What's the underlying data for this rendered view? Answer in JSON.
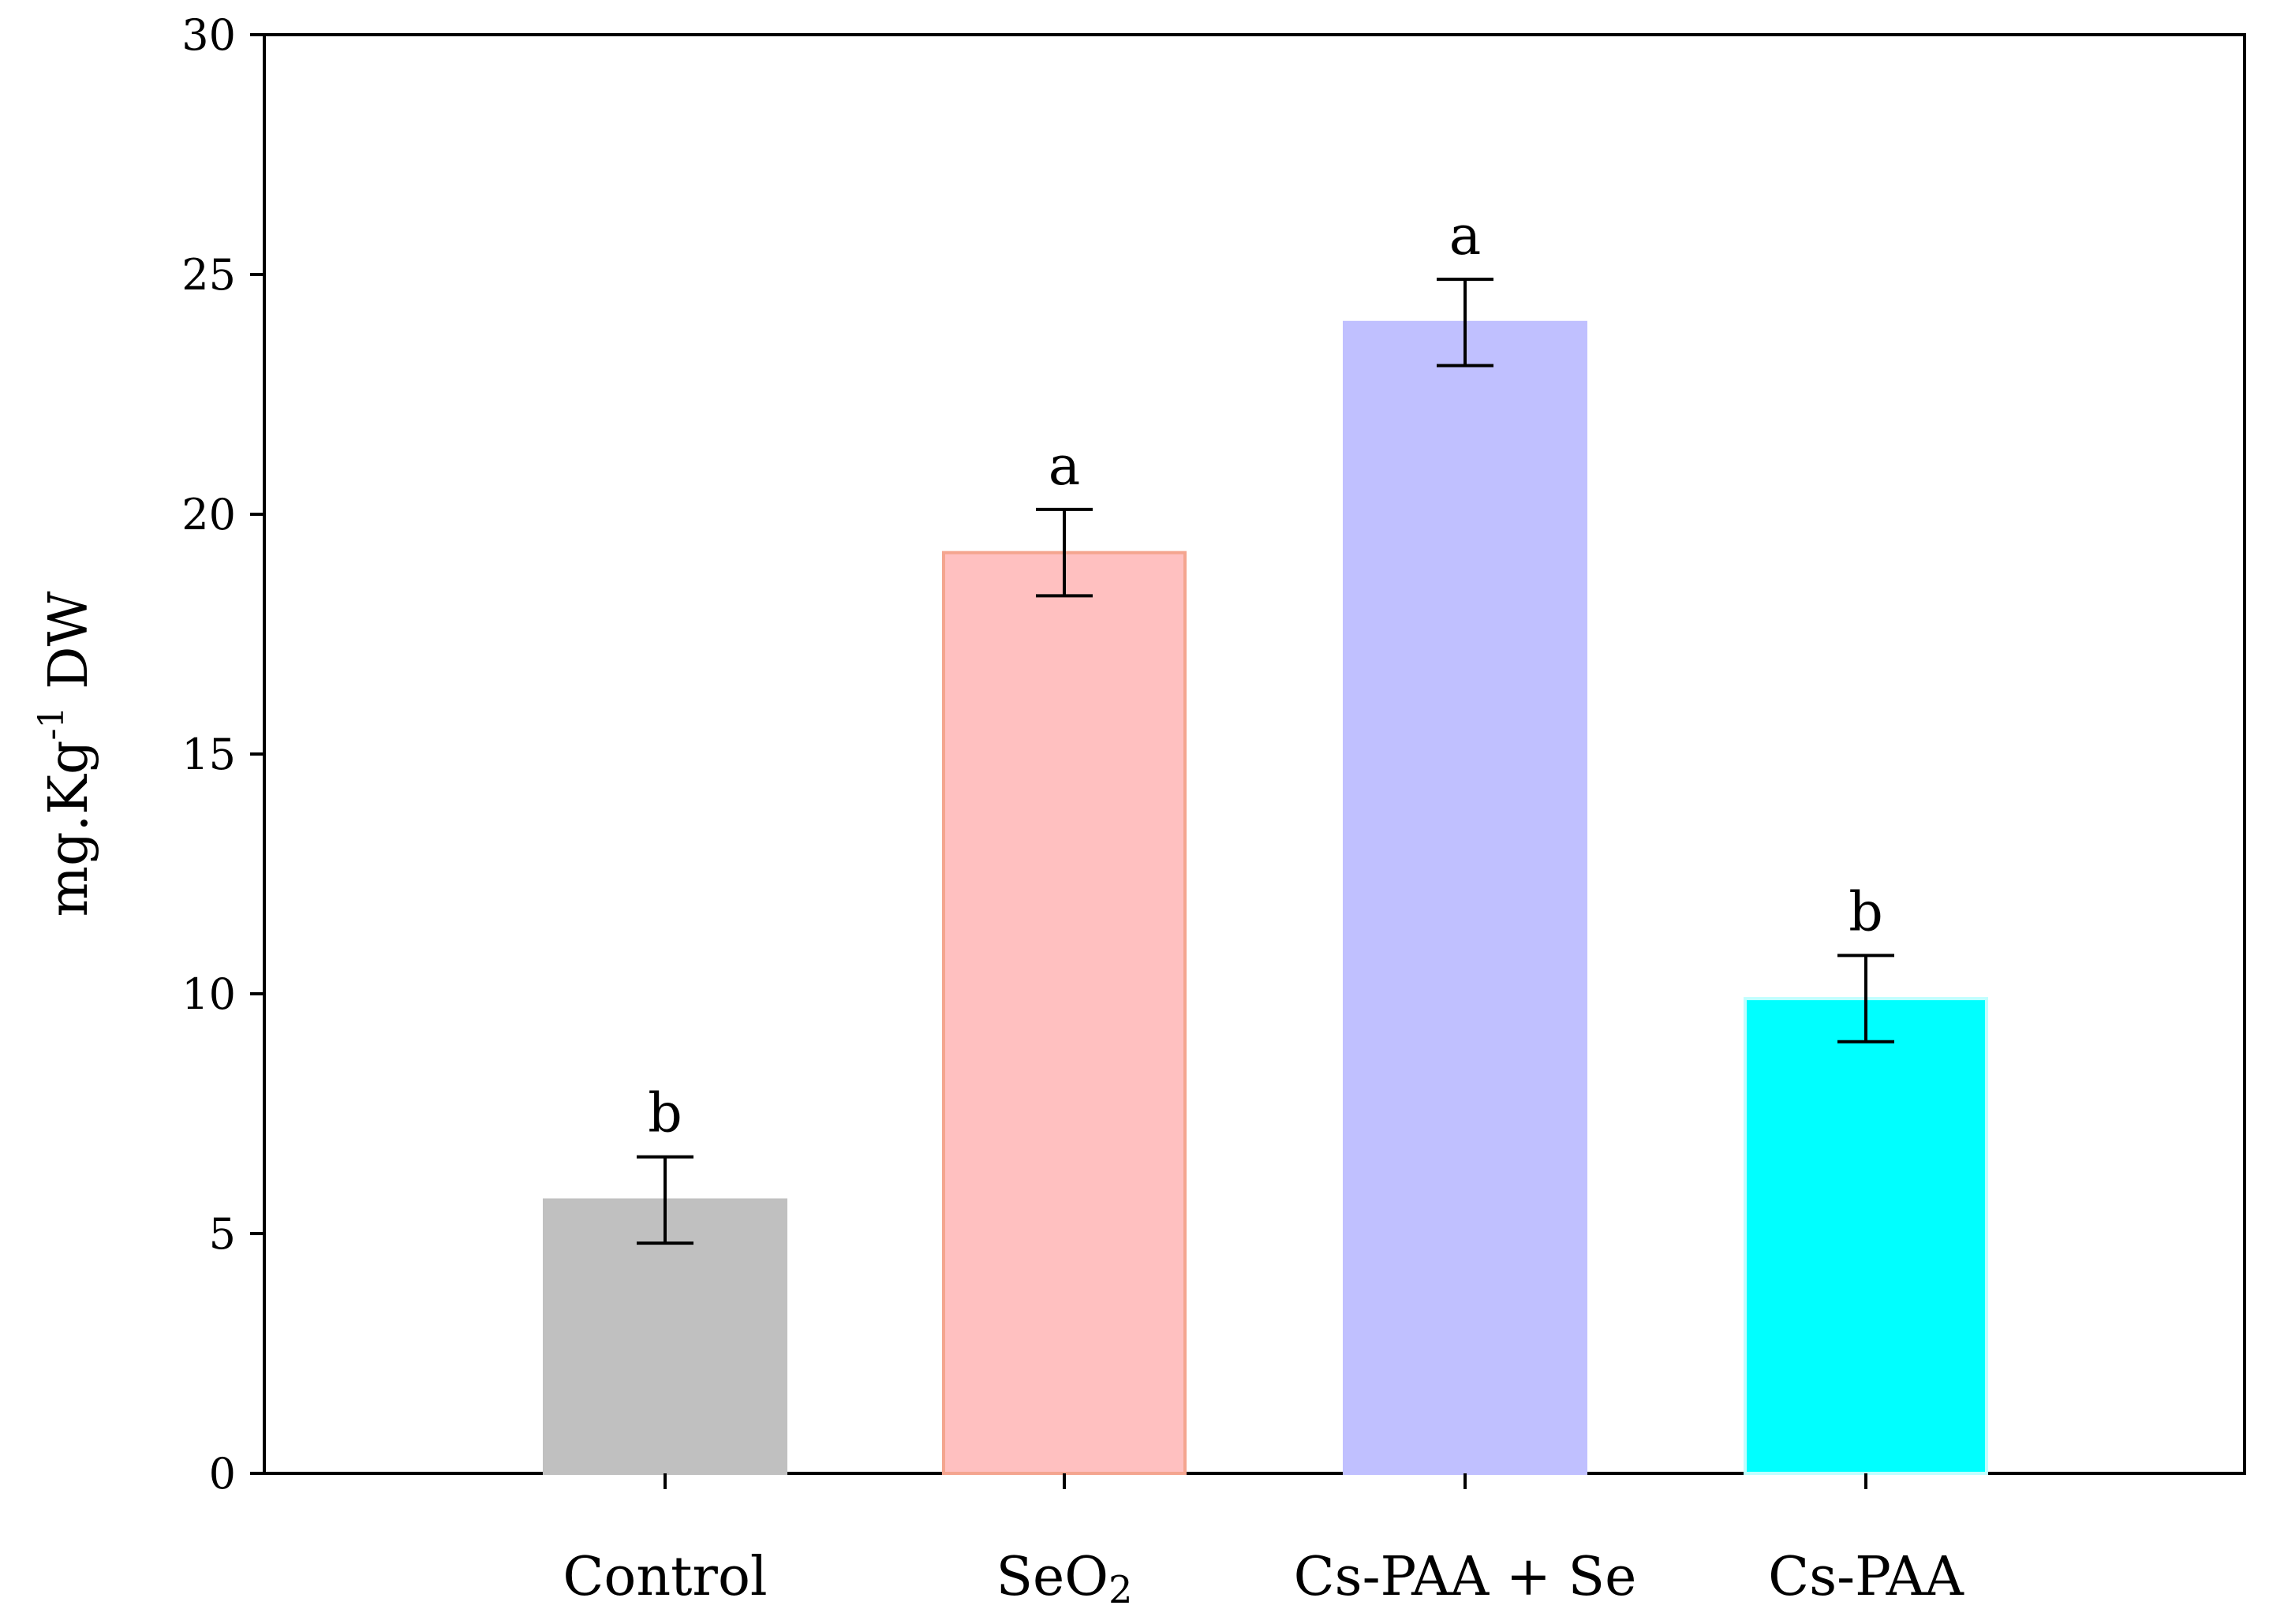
{
  "chart_data": {
    "type": "bar",
    "title": "",
    "xlabel": "",
    "ylabel": {
      "base": "mg.Kg",
      "sup": "-1",
      "suffix": " DW"
    },
    "ylim": [
      0,
      30
    ],
    "yticks": [
      0,
      5,
      10,
      15,
      20,
      25,
      30
    ],
    "grid": false,
    "categories": [
      {
        "name": "Control",
        "sub": ""
      },
      {
        "name": "SeO",
        "sub": "2"
      },
      {
        "name": "Cs-PAA + Se",
        "sub": ""
      },
      {
        "name": "Cs-PAA",
        "sub": ""
      }
    ],
    "values": [
      5.7,
      19.2,
      24.0,
      9.9
    ],
    "errors": [
      0.9,
      0.9,
      0.9,
      0.9
    ],
    "significance": [
      "b",
      "a",
      "a",
      "b"
    ],
    "fill_colors": [
      "#c0c0c0",
      "#ffc0c0",
      "#c0c0ff",
      "#00ffff"
    ],
    "edge_colors": [
      "#c0c0c0",
      "#f4a58f",
      "#c0c0ff",
      "#bfffff"
    ]
  }
}
